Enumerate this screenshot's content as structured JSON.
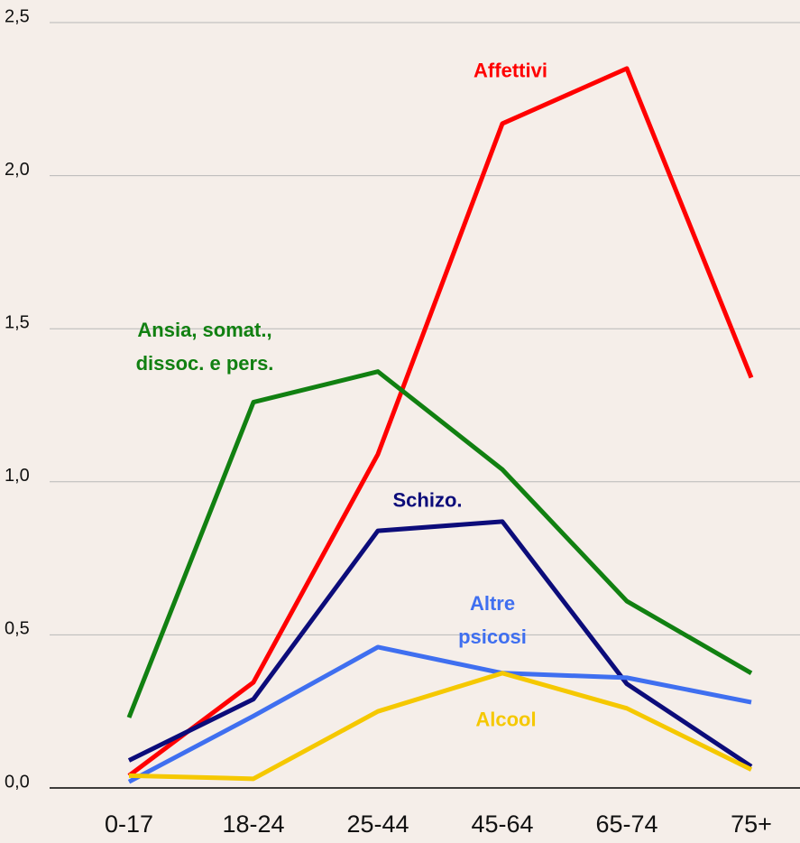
{
  "chart_data": {
    "type": "line",
    "categories": [
      "0-17",
      "18-24",
      "25-44",
      "45-64",
      "65-74",
      "75+"
    ],
    "series": [
      {
        "name": "Affettivi",
        "color": "#ff0000",
        "values": [
          0.04,
          0.345,
          1.09,
          2.17,
          2.35,
          1.34
        ]
      },
      {
        "name": "Ansia, somat., dissoc. e pers.",
        "color": "#118011",
        "values": [
          0.23,
          1.26,
          1.36,
          1.04,
          0.61,
          0.375
        ]
      },
      {
        "name": "Schizo.",
        "color": "#0c0c7a",
        "values": [
          0.09,
          0.29,
          0.84,
          0.87,
          0.34,
          0.07
        ]
      },
      {
        "name": "Altre psicosi",
        "color": "#3f6ff0",
        "values": [
          0.02,
          0.235,
          0.46,
          0.375,
          0.36,
          0.28
        ]
      },
      {
        "name": "Alcool",
        "color": "#f5c800",
        "values": [
          0.04,
          0.03,
          0.25,
          0.375,
          0.26,
          0.06
        ]
      }
    ],
    "ylim": [
      0,
      2.5
    ],
    "yticks": [
      {
        "value": 0,
        "label": "0,0"
      },
      {
        "value": 0.5,
        "label": "0,5"
      },
      {
        "value": 1,
        "label": "1,0"
      },
      {
        "value": 1.5,
        "label": "1,5"
      },
      {
        "value": 2,
        "label": "2,0"
      },
      {
        "value": 2.5,
        "label": "2,5"
      }
    ],
    "grid": true
  }
}
